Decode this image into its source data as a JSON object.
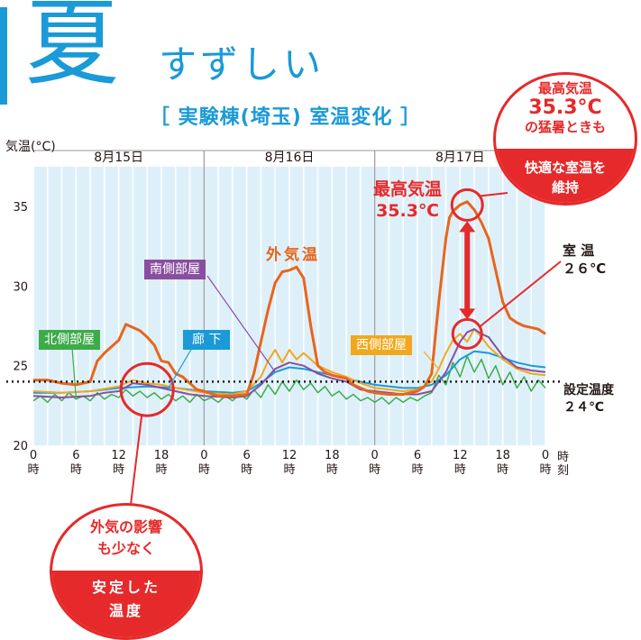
{
  "header": {
    "season": "夏",
    "season_sub": "すずしい",
    "chart_title": "［ 実験棟(埼玉) 室温変化 ］"
  },
  "colors": {
    "accent_blue": "#1a9ad7",
    "outside": "#e8651b",
    "south": "#8a4ea1",
    "north": "#3dab4a",
    "corridor": "#1a9ad7",
    "west": "#f2a81d",
    "highlight": "#e6292a"
  },
  "labels": {
    "outside": "外気温",
    "south": "南側部屋",
    "north": "北側部屋",
    "corridor": "廊 下",
    "west": "西側部屋",
    "max_title": "最高気温",
    "max_value": "35.3℃",
    "room_title": "室 温",
    "room_value": "２６℃",
    "setpoint_title": "設定温度",
    "setpoint_value": "２４℃"
  },
  "badges": {
    "top": {
      "line1": "最高気温",
      "line2": "35.3°C",
      "line3": "の猛暑ときも",
      "bottom1": "快適な室温を",
      "bottom2": "維持"
    },
    "bottom": {
      "line1": "外気の影響",
      "line2": "も少なく",
      "bottom1": "安定した",
      "bottom2": "温度"
    }
  },
  "chart_data": {
    "type": "line",
    "ylabel": "気温(°C)",
    "xunit": [
      "時",
      "刻"
    ],
    "dates": [
      "8月15日",
      "8月16日",
      "8月17日"
    ],
    "ylim": [
      20,
      37.5
    ],
    "yticks": [
      20,
      25,
      30,
      35
    ],
    "xticks": [
      {
        "h": 0,
        "label": "0",
        "unit": "時"
      },
      {
        "h": 6,
        "label": "6",
        "unit": "時"
      },
      {
        "h": 12,
        "label": "12",
        "unit": "時"
      },
      {
        "h": 18,
        "label": "18",
        "unit": "時"
      },
      {
        "h": 24,
        "label": "0",
        "unit": "時"
      },
      {
        "h": 30,
        "label": "6",
        "unit": "時"
      },
      {
        "h": 36,
        "label": "12",
        "unit": "時"
      },
      {
        "h": 42,
        "label": "18",
        "unit": "時"
      },
      {
        "h": 48,
        "label": "0",
        "unit": "時"
      },
      {
        "h": 54,
        "label": "6",
        "unit": "時"
      },
      {
        "h": 60,
        "label": "12",
        "unit": "時"
      },
      {
        "h": 66,
        "label": "18",
        "unit": "時"
      },
      {
        "h": 72,
        "label": "0",
        "unit": "時"
      }
    ],
    "xlim": [
      0,
      72
    ],
    "setpoint": 24,
    "series": [
      {
        "name": "外気温",
        "color": "#e8651b",
        "width": 3,
        "x": [
          0,
          2,
          4,
          6,
          8,
          9,
          10,
          11,
          12,
          13,
          14,
          15,
          16,
          17,
          18,
          19,
          20,
          21,
          22,
          23,
          24,
          26,
          28,
          30,
          31,
          32,
          33,
          34,
          35,
          36,
          37,
          38,
          39,
          40,
          41,
          42,
          43,
          44,
          45,
          46,
          47,
          48,
          50,
          52,
          54,
          55,
          56,
          57,
          58,
          58.5,
          59,
          60,
          61,
          62,
          63,
          64,
          65,
          66,
          67,
          68,
          69,
          70,
          71,
          72
        ],
        "y": [
          24.1,
          24.1,
          23.9,
          23.8,
          24.0,
          25.3,
          25.8,
          26.2,
          26.6,
          27.6,
          27.4,
          27.2,
          26.8,
          26.3,
          25.3,
          25.2,
          24.5,
          24.3,
          23.9,
          23.5,
          23.4,
          23.1,
          23.1,
          23.2,
          24.5,
          26.5,
          28.5,
          30.2,
          30.9,
          31.0,
          31.2,
          30.5,
          27.5,
          25.0,
          24.6,
          24.4,
          24.3,
          24.2,
          23.8,
          23.6,
          23.4,
          23.3,
          23.2,
          23.2,
          23.4,
          23.7,
          24.5,
          29.0,
          33.0,
          34.3,
          34.7,
          35.1,
          35.3,
          34.8,
          34.0,
          33.0,
          31.0,
          29.0,
          28.0,
          27.7,
          27.5,
          27.4,
          27.3,
          27.0
        ]
      },
      {
        "name": "南側部屋",
        "color": "#8a4ea1",
        "width": 2,
        "x": [
          0,
          4,
          8,
          10,
          12,
          14,
          16,
          18,
          20,
          22,
          24,
          28,
          30,
          32,
          34,
          36,
          38,
          40,
          42,
          44,
          46,
          48,
          52,
          54,
          56,
          58,
          60,
          61,
          62,
          63,
          64,
          66,
          68,
          70,
          72
        ],
        "y": [
          23.1,
          23.0,
          23.1,
          23.3,
          23.4,
          23.9,
          23.8,
          23.6,
          23.4,
          23.2,
          23.1,
          23.0,
          23.1,
          23.8,
          24.8,
          25.2,
          25.0,
          24.5,
          24.2,
          24.0,
          23.5,
          23.4,
          23.2,
          23.2,
          23.4,
          24.6,
          26.5,
          27.1,
          27.3,
          27.0,
          26.8,
          25.6,
          24.9,
          24.7,
          24.6
        ]
      },
      {
        "name": "北側部屋",
        "color": "#3dab4a",
        "width": 1.5,
        "x": [
          0,
          1,
          2,
          3,
          4,
          5,
          6,
          7,
          8,
          9,
          10,
          11,
          12,
          13,
          14,
          15,
          16,
          17,
          18,
          19,
          20,
          21,
          22,
          23,
          24,
          25,
          26,
          27,
          28,
          29,
          30,
          31,
          32,
          33,
          34,
          35,
          36,
          37,
          38,
          39,
          40,
          41,
          42,
          43,
          44,
          45,
          46,
          47,
          48,
          49,
          50,
          51,
          52,
          53,
          54,
          55,
          56,
          57,
          58,
          59,
          60,
          61,
          62,
          63,
          64,
          65,
          66,
          67,
          68,
          69,
          70,
          71,
          72
        ],
        "y": [
          22.8,
          23.1,
          22.7,
          23.2,
          22.8,
          23.3,
          22.9,
          23.1,
          22.8,
          23.3,
          22.9,
          23.2,
          23.0,
          23.5,
          23.1,
          23.4,
          23.0,
          23.3,
          22.9,
          23.2,
          22.8,
          23.1,
          22.7,
          23.2,
          22.8,
          23.0,
          22.7,
          23.1,
          22.8,
          23.2,
          22.9,
          23.5,
          23.0,
          23.8,
          23.2,
          24.0,
          23.4,
          24.1,
          23.5,
          23.9,
          23.3,
          23.7,
          23.1,
          23.4,
          22.9,
          23.2,
          22.8,
          23.0,
          22.7,
          23.0,
          22.6,
          23.0,
          22.7,
          23.0,
          22.8,
          23.1,
          23.3,
          24.4,
          23.8,
          25.2,
          24.3,
          25.6,
          24.6,
          25.4,
          24.2,
          25.0,
          23.8,
          24.6,
          23.6,
          24.3,
          23.4,
          24.1,
          23.6
        ]
      },
      {
        "name": "廊 下",
        "color": "#1a9ad7",
        "width": 2,
        "x": [
          0,
          4,
          8,
          12,
          16,
          20,
          24,
          28,
          30,
          32,
          34,
          36,
          38,
          40,
          42,
          44,
          46,
          48,
          52,
          54,
          56,
          58,
          60,
          62,
          64,
          66,
          68,
          70,
          72
        ],
        "y": [
          23.3,
          23.3,
          23.4,
          23.6,
          23.7,
          23.6,
          23.4,
          23.3,
          23.4,
          23.9,
          24.6,
          24.9,
          24.8,
          24.6,
          24.4,
          24.2,
          24.0,
          23.8,
          23.6,
          23.6,
          23.8,
          24.4,
          25.4,
          25.9,
          25.8,
          25.5,
          25.2,
          25.0,
          24.9
        ]
      },
      {
        "name": "西側部屋",
        "color": "#f2a81d",
        "width": 2,
        "x": [
          0,
          4,
          8,
          12,
          14,
          16,
          18,
          20,
          24,
          28,
          30,
          32,
          33,
          34,
          35,
          36,
          37,
          38,
          40,
          42,
          44,
          46,
          48,
          52,
          54,
          56,
          57,
          58,
          59,
          60,
          61,
          62,
          63,
          64,
          65,
          66,
          68,
          70,
          72
        ],
        "y": [
          23.4,
          23.3,
          23.4,
          23.7,
          24.1,
          23.9,
          23.8,
          23.6,
          23.3,
          23.2,
          23.4,
          24.3,
          25.3,
          26.0,
          25.2,
          26.0,
          25.4,
          25.8,
          25.0,
          24.6,
          24.3,
          23.9,
          23.6,
          23.4,
          23.5,
          24.0,
          24.8,
          25.8,
          26.6,
          27.0,
          26.5,
          27.3,
          26.8,
          26.2,
          25.8,
          25.4,
          24.8,
          24.5,
          24.4
        ]
      }
    ]
  }
}
